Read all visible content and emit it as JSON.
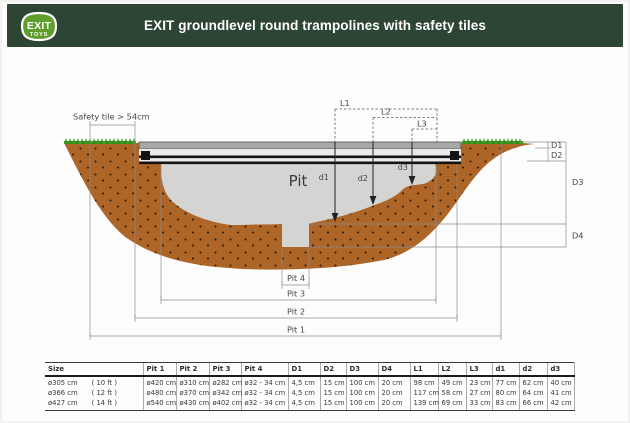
{
  "header": {
    "title": "EXIT groundlevel round trampolines with safety tiles",
    "logo": {
      "line1": "EXIT",
      "line2": "TOYS"
    }
  },
  "colors": {
    "header_green": "#2d4634",
    "logo_green": "#5f9e2d",
    "soil_brown": "#ad6528",
    "soil_dot": "#2c1b08",
    "pit_gray": "#d4d4d2",
    "grass_green": "#3f9e23",
    "grass_dark": "#2e8116",
    "slab_gray": "#a8a8a6",
    "frame_light": "#eaeae8",
    "frame_black": "#141414"
  },
  "diagram": {
    "labels": {
      "safety": "Safety tile > 54cm",
      "pit": "Pit",
      "L1": "L1",
      "L2": "L2",
      "L3": "L3",
      "D1": "D1",
      "D2": "D2",
      "D3": "D3",
      "D4": "D4",
      "d1": "d1",
      "d2": "d2",
      "d3": "d3",
      "pit1": "Pit 1",
      "pit2": "Pit 2",
      "pit3": "Pit 3",
      "pit4": "Pit 4"
    }
  },
  "table": {
    "headers": [
      "Size",
      "Pit 1",
      "Pit 2",
      "Pit 3",
      "Pit 4",
      "D1",
      "D2",
      "D3",
      "D4",
      "L1",
      "L2",
      "L3",
      "d1",
      "d2",
      "d3"
    ],
    "rows": [
      {
        "size": "ø305 cm",
        "ft": "( 10 ft )",
        "cells": [
          "ø420 cm",
          "ø310 cm",
          "ø282 cm",
          "ø32 - 34 cm",
          "4,5 cm",
          "15 cm",
          "100 cm",
          "20 cm",
          "98 cm",
          "49 cm",
          "23 cm",
          "77 cm",
          "62 cm",
          "40 cm"
        ]
      },
      {
        "size": "ø366 cm",
        "ft": "( 12 ft )",
        "cells": [
          "ø480 cm",
          "ø370 cm",
          "ø342 cm",
          "ø32 - 34 cm",
          "4,5 cm",
          "15 cm",
          "100 cm",
          "20 cm",
          "117 cm",
          "58 cm",
          "27 cm",
          "80 cm",
          "64 cm",
          "41 cm"
        ]
      },
      {
        "size": "ø427 cm",
        "ft": "( 14 ft )",
        "cells": [
          "ø540 cm",
          "ø430 cm",
          "ø402 cm",
          "ø32 - 34 cm",
          "4,5 cm",
          "15 cm",
          "100 cm",
          "20 cm",
          "139 cm",
          "69 cm",
          "33 cm",
          "83 cm",
          "66 cm",
          "42 cm"
        ]
      }
    ]
  }
}
